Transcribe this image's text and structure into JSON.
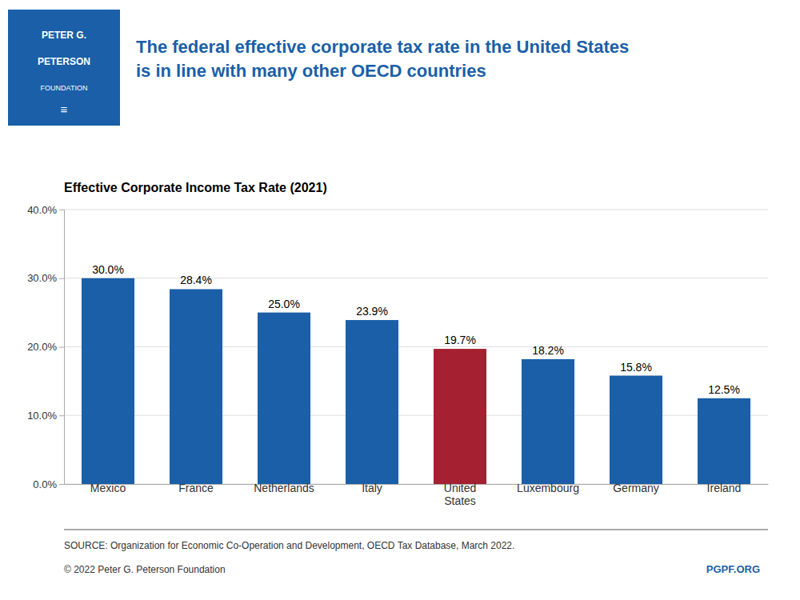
{
  "chart_data": {
    "type": "bar",
    "title": "The federal effective corporate tax rate in the United States\nis in line with many other OECD countries",
    "subtitle": "Effective Corporate Income Tax Rate (2021)",
    "categories": [
      "Mexico",
      "France",
      "Netherlands",
      "Italy",
      "United\nStates",
      "Luxembourg",
      "Germany",
      "Ireland"
    ],
    "values": [
      30.0,
      28.4,
      25.0,
      23.9,
      19.7,
      18.2,
      15.8,
      12.5
    ],
    "value_labels": [
      "30.0%",
      "28.4%",
      "25.0%",
      "23.9%",
      "19.7%",
      "18.2%",
      "15.8%",
      "12.5%"
    ],
    "colors": [
      "#1a5fa8",
      "#1a5fa8",
      "#1a5fa8",
      "#1a5fa8",
      "#a52030",
      "#1a5fa8",
      "#1a5fa8",
      "#1a5fa8"
    ],
    "ylim": [
      0,
      40
    ],
    "yticks": [
      {
        "value": 0,
        "label": "0.0%"
      },
      {
        "value": 10,
        "label": "10.0%"
      },
      {
        "value": 20,
        "label": "20.0%"
      },
      {
        "value": 30,
        "label": "30.0%"
      },
      {
        "value": 40,
        "label": "40.0%"
      }
    ],
    "grid": true,
    "data_labels": true,
    "annotations": [
      "SOURCE: Organization for Economic Co-Operation and Development, OECD Tax Database, March 2022.",
      "© 2022 Peter G. Peterson Foundation",
      "PGPF.ORG",
      "PETER G.",
      "PETERSON",
      "FOUNDATION",
      "≡"
    ]
  }
}
